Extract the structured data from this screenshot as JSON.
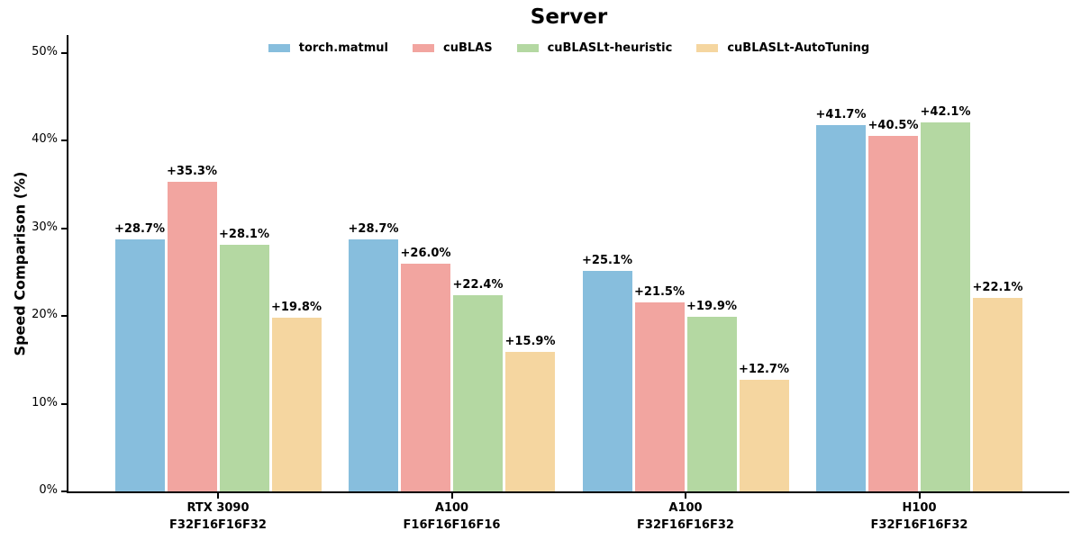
{
  "title": "Server",
  "ylabel": "Speed Comparison (%)",
  "chart_data": {
    "type": "bar",
    "title": "Server",
    "xlabel": "",
    "ylabel": "Speed Comparison (%)",
    "ylim": [
      0,
      52
    ],
    "grid": false,
    "legend_position": "upper center",
    "ytick_values": [
      0,
      10,
      20,
      30,
      40,
      50
    ],
    "ytick_labels": [
      "0%",
      "10%",
      "20%",
      "30%",
      "40%",
      "50%"
    ],
    "categories": [
      {
        "line1": "RTX 3090",
        "line2": "F32F16F16F32"
      },
      {
        "line1": "A100",
        "line2": "F16F16F16F16"
      },
      {
        "line1": "A100",
        "line2": "F32F16F16F32"
      },
      {
        "line1": "H100",
        "line2": "F32F16F16F32"
      }
    ],
    "series": [
      {
        "name": "torch.matmul",
        "color": "#87BEDD",
        "values": [
          28.7,
          28.7,
          25.1,
          41.7
        ],
        "bar_labels": [
          "+28.7%",
          "+28.7%",
          "+25.1%",
          "+41.7%"
        ]
      },
      {
        "name": "cuBLAS",
        "color": "#F2A5A0",
        "values": [
          35.3,
          26.0,
          21.5,
          40.5
        ],
        "bar_labels": [
          "+35.3%",
          "+26.0%",
          "+21.5%",
          "+40.5%"
        ]
      },
      {
        "name": "cuBLASLt-heuristic",
        "color": "#B4D8A2",
        "values": [
          28.1,
          22.4,
          19.9,
          42.1
        ],
        "bar_labels": [
          "+28.1%",
          "+22.4%",
          "+19.9%",
          "+42.1%"
        ]
      },
      {
        "name": "cuBLASLt-AutoTuning",
        "color": "#F5D6A0",
        "values": [
          19.8,
          15.9,
          12.7,
          22.1
        ],
        "bar_labels": [
          "+19.8%",
          "+15.9%",
          "+12.7%",
          "+22.1%"
        ]
      }
    ]
  }
}
